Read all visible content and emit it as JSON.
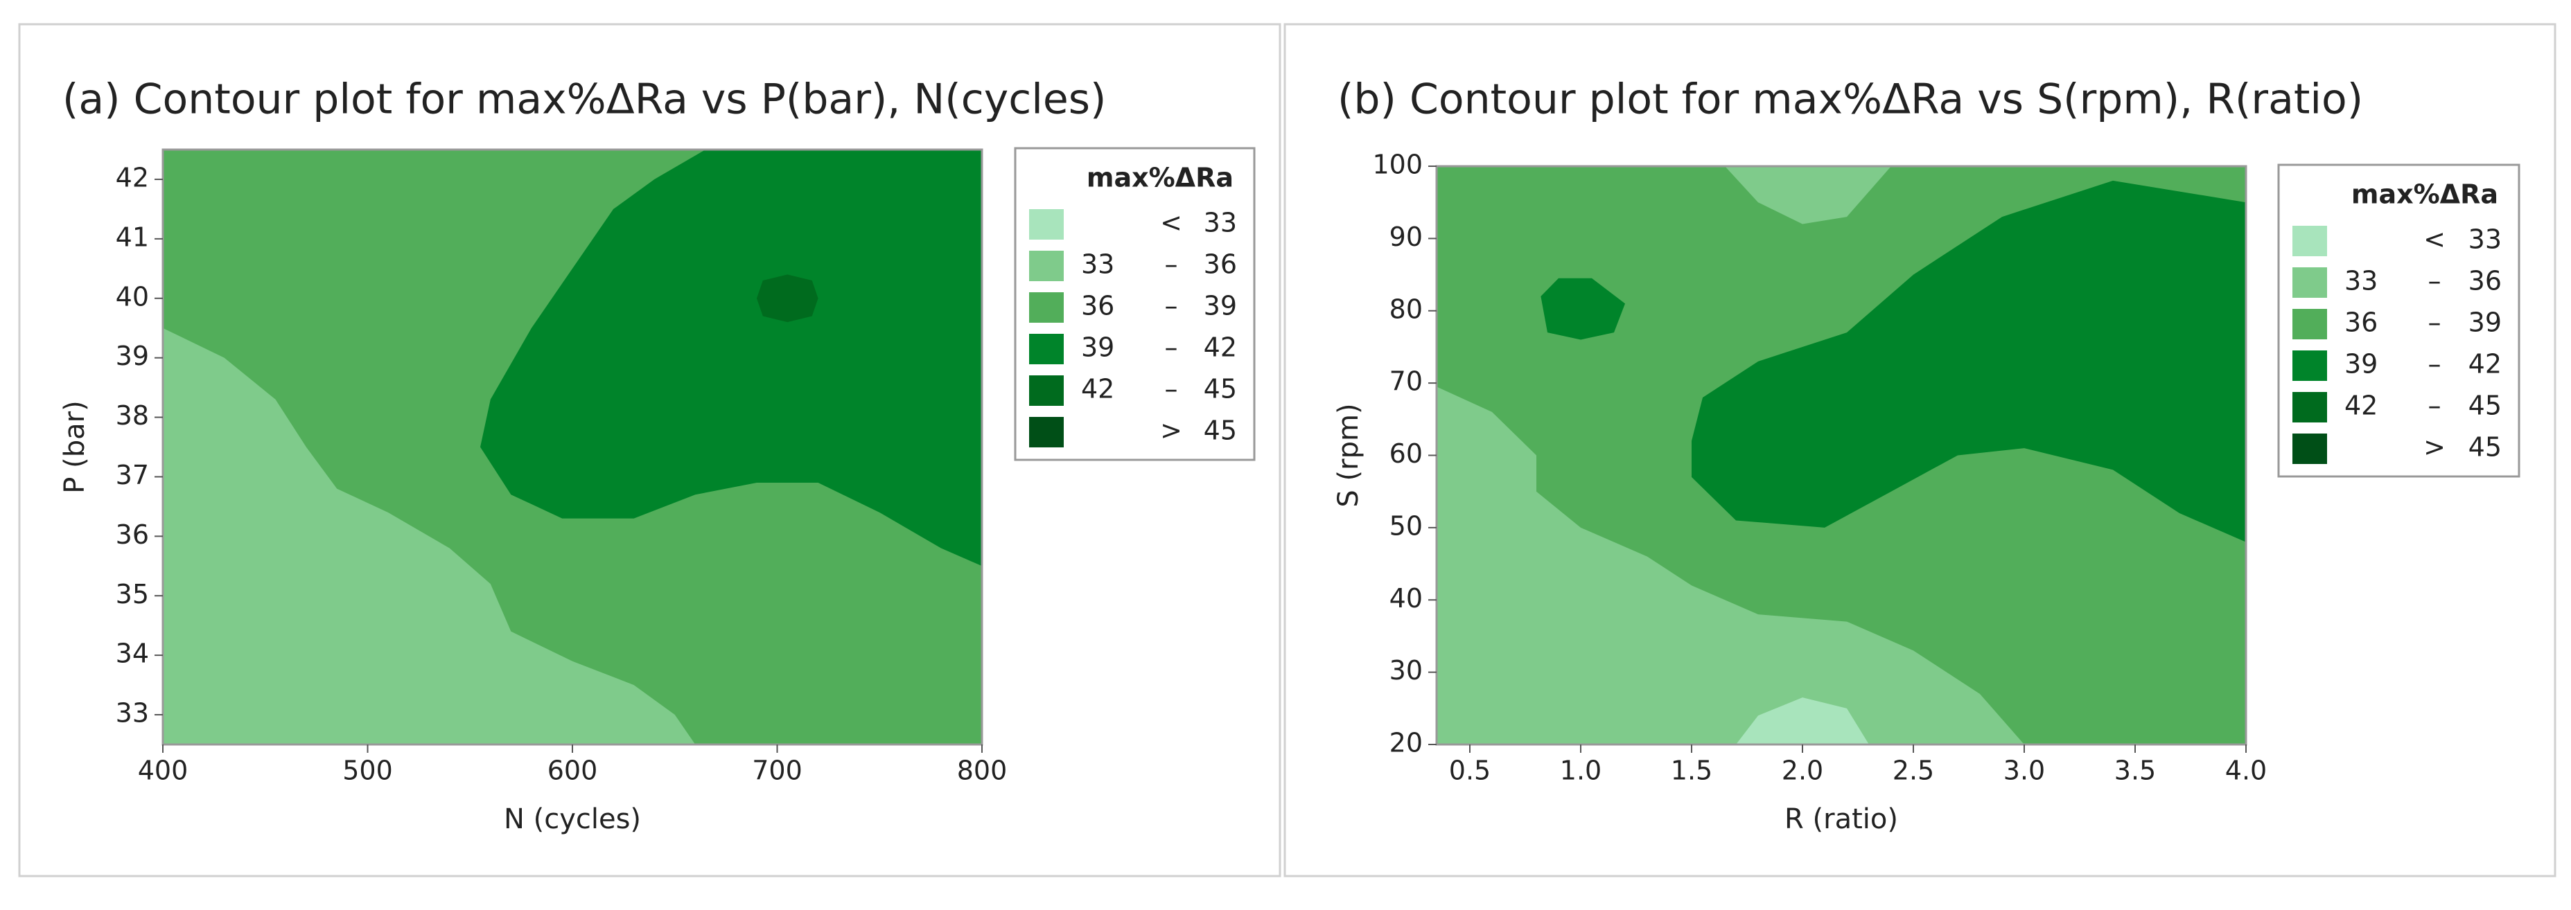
{
  "chart_data": [
    {
      "type": "contour",
      "title": "(a) Contour plot for max%ΔRa vs P(bar), N(cycles)",
      "xlabel": "N (cycles)",
      "ylabel": "P (bar)",
      "xlim": [
        400,
        800
      ],
      "ylim": [
        32.5,
        42.5
      ],
      "xticks": [
        400,
        500,
        600,
        700,
        800
      ],
      "yticks": [
        33,
        34,
        35,
        36,
        37,
        38,
        39,
        40,
        41,
        42
      ],
      "legend": {
        "title": "max%ΔRa",
        "below": "<",
        "dash": "–",
        "above": ">",
        "edges": [
          33,
          36,
          39,
          42,
          45
        ],
        "colors": [
          "#a8e4bc",
          "#7fcb8b",
          "#52ae5a",
          "#00842a",
          "#006b1e",
          "#004f17"
        ]
      },
      "regions": [
        {
          "bin": 2,
          "points": [
            [
              400,
              32.5
            ],
            [
              800,
              32.5
            ],
            [
              800,
              42.5
            ],
            [
              400,
              42.5
            ]
          ]
        },
        {
          "bin": 1,
          "points": [
            [
              400,
              39.5
            ],
            [
              430,
              39
            ],
            [
              455,
              38.3
            ],
            [
              470,
              37.5
            ],
            [
              485,
              36.8
            ],
            [
              510,
              36.4
            ],
            [
              540,
              35.8
            ],
            [
              560,
              35.2
            ],
            [
              570,
              34.4
            ],
            [
              600,
              33.9
            ],
            [
              630,
              33.5
            ],
            [
              650,
              33
            ],
            [
              660,
              32.5
            ],
            [
              400,
              32.5
            ]
          ]
        },
        {
          "bin": 3,
          "points": [
            [
              665,
              42.5
            ],
            [
              640,
              42
            ],
            [
              620,
              41.5
            ],
            [
              600,
              40.5
            ],
            [
              580,
              39.5
            ],
            [
              560,
              38.3
            ],
            [
              555,
              37.5
            ],
            [
              570,
              36.7
            ],
            [
              595,
              36.3
            ],
            [
              630,
              36.3
            ],
            [
              660,
              36.7
            ],
            [
              690,
              36.9
            ],
            [
              720,
              36.9
            ],
            [
              750,
              36.4
            ],
            [
              780,
              35.8
            ],
            [
              800,
              35.5
            ],
            [
              800,
              42.5
            ]
          ]
        },
        {
          "bin": 4,
          "points": [
            [
              690,
              40
            ],
            [
              693,
              40.3
            ],
            [
              705,
              40.4
            ],
            [
              717,
              40.3
            ],
            [
              720,
              40
            ],
            [
              717,
              39.7
            ],
            [
              705,
              39.6
            ],
            [
              693,
              39.7
            ]
          ]
        }
      ]
    },
    {
      "type": "contour",
      "title": "(b) Contour plot for max%ΔRa vs S(rpm), R(ratio)",
      "xlabel": "R (ratio)",
      "ylabel": "S (rpm)",
      "xlim": [
        0.35,
        4.0
      ],
      "ylim": [
        20,
        100
      ],
      "xticks": [
        0.5,
        {
          "value": 1,
          "label": "1.0"
        },
        1.5,
        {
          "value": 2,
          "label": "2.0"
        },
        2.5,
        {
          "value": 3,
          "label": "3.0"
        },
        3.5,
        {
          "value": 4,
          "label": "4.0"
        }
      ],
      "yticks": [
        20,
        30,
        40,
        50,
        60,
        70,
        80,
        90,
        100
      ],
      "legend": {
        "title": "max%ΔRa",
        "below": "<",
        "dash": "–",
        "above": ">",
        "edges": [
          33,
          36,
          39,
          42,
          45
        ],
        "colors": [
          "#a8e4bc",
          "#7fcb8b",
          "#52ae5a",
          "#00842a",
          "#006b1e",
          "#004f17"
        ]
      },
      "regions": [
        {
          "bin": 2,
          "points": [
            [
              0.35,
              20
            ],
            [
              4.0,
              20
            ],
            [
              4.0,
              100
            ],
            [
              0.35,
              100
            ]
          ]
        },
        {
          "bin": 1,
          "points": [
            [
              0.35,
              69.5
            ],
            [
              0.6,
              66
            ],
            [
              0.8,
              60
            ],
            [
              0.8,
              55
            ],
            [
              1.0,
              50
            ],
            [
              1.3,
              46
            ],
            [
              1.5,
              42
            ],
            [
              1.8,
              38
            ],
            [
              2.2,
              37
            ],
            [
              2.5,
              33
            ],
            [
              2.8,
              27
            ],
            [
              3.0,
              20
            ],
            [
              0.35,
              20
            ]
          ]
        },
        {
          "bin": 0,
          "points": [
            [
              1.7,
              20
            ],
            [
              1.8,
              24
            ],
            [
              2.0,
              26.5
            ],
            [
              2.2,
              25
            ],
            [
              2.3,
              20
            ]
          ]
        },
        {
          "bin": 1,
          "points": [
            [
              1.65,
              100
            ],
            [
              1.8,
              95
            ],
            [
              2.0,
              92
            ],
            [
              2.2,
              93
            ],
            [
              2.4,
              100
            ]
          ]
        },
        {
          "bin": 3,
          "points": [
            [
              0.82,
              82
            ],
            [
              0.9,
              84.5
            ],
            [
              1.05,
              84.5
            ],
            [
              1.2,
              81
            ],
            [
              1.15,
              77
            ],
            [
              1.0,
              76
            ],
            [
              0.85,
              77
            ]
          ]
        },
        {
          "bin": 3,
          "points": [
            [
              1.5,
              62
            ],
            [
              1.55,
              68
            ],
            [
              1.8,
              73
            ],
            [
              2.2,
              77
            ],
            [
              2.5,
              85
            ],
            [
              2.9,
              93
            ],
            [
              3.4,
              98
            ],
            [
              4.0,
              95
            ],
            [
              4.0,
              48
            ],
            [
              3.7,
              52
            ],
            [
              3.4,
              58
            ],
            [
              3.0,
              61
            ],
            [
              2.7,
              60
            ],
            [
              2.4,
              55
            ],
            [
              2.1,
              50
            ],
            [
              1.7,
              51
            ],
            [
              1.5,
              57
            ]
          ]
        }
      ]
    }
  ]
}
